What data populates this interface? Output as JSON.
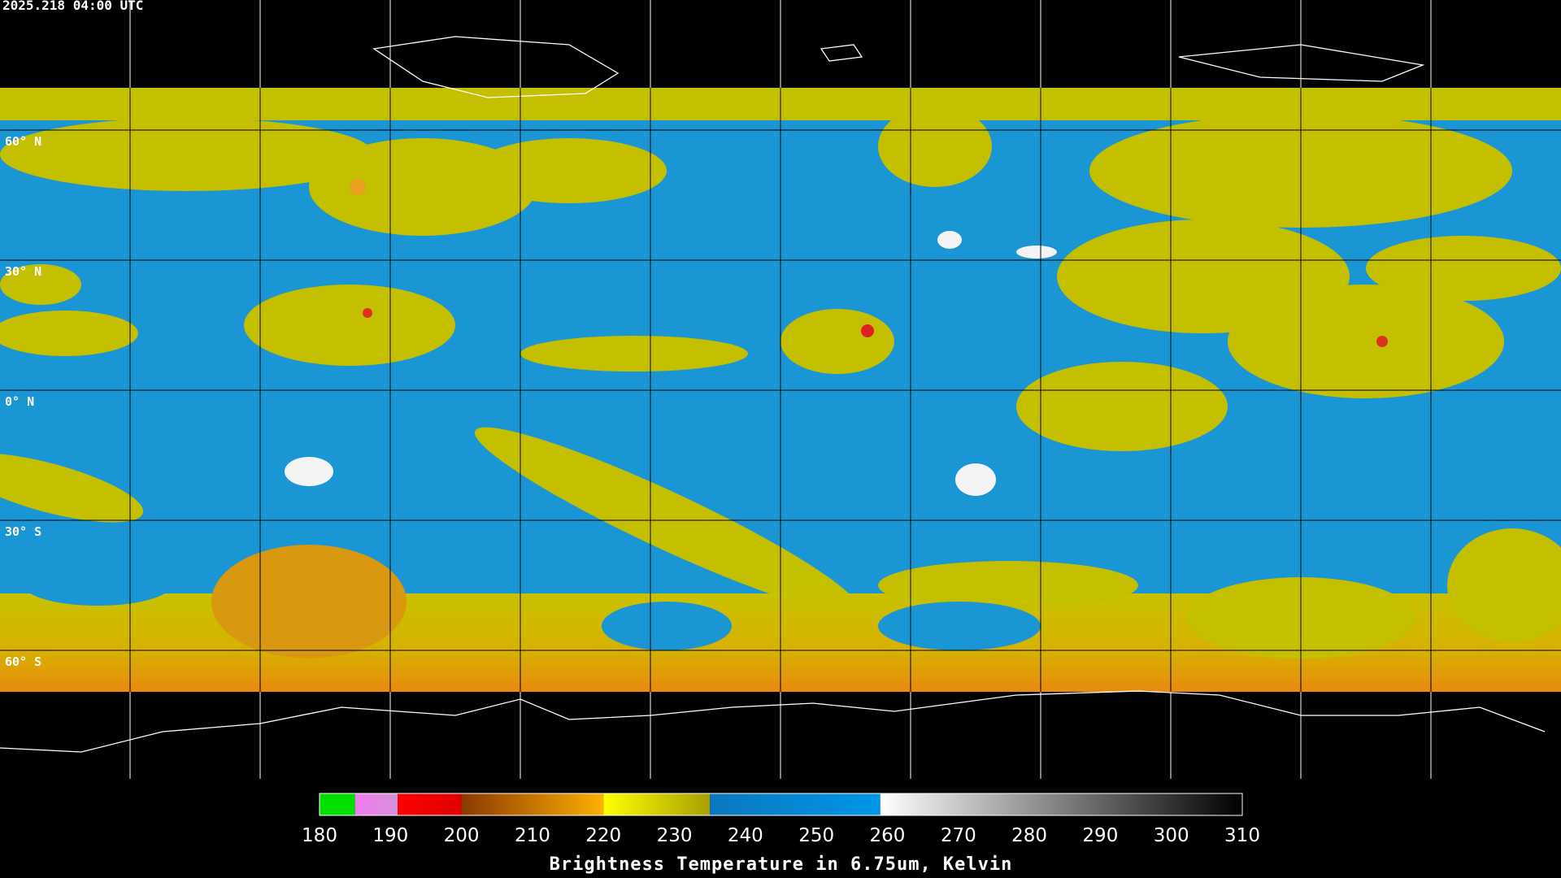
{
  "timestamp": "2025.218 04:00 UTC",
  "latitude_labels": [
    "60° N",
    "30° N",
    "0° N",
    "30° S",
    "60° S"
  ],
  "colorbar": {
    "title": "Brightness Temperature in 6.75um, Kelvin",
    "range": [
      180,
      310
    ],
    "ticks": [
      180,
      190,
      200,
      210,
      220,
      230,
      240,
      250,
      260,
      270,
      280,
      290,
      300,
      310
    ],
    "segments": [
      {
        "from": 180,
        "to": 185,
        "colors": [
          "#00e000",
          "#00e000"
        ]
      },
      {
        "from": 185,
        "to": 191,
        "colors": [
          "#f07cf0",
          "#d890d8"
        ]
      },
      {
        "from": 191,
        "to": 200,
        "colors": [
          "#ff0000",
          "#e00000"
        ]
      },
      {
        "from": 200,
        "to": 220,
        "colors": [
          "#8a3a00",
          "#ffb000"
        ]
      },
      {
        "from": 220,
        "to": 235,
        "colors": [
          "#ffff00",
          "#a8a000"
        ]
      },
      {
        "from": 235,
        "to": 259,
        "colors": [
          "#0a78c0",
          "#0096e8"
        ]
      },
      {
        "from": 259,
        "to": 310,
        "colors": [
          "#ffffff",
          "#000000"
        ]
      }
    ]
  }
}
